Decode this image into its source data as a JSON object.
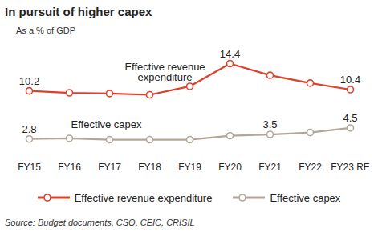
{
  "chart_data": {
    "type": "line",
    "title": "In pursuit of higher capex",
    "subtitle": "As a % of GDP",
    "source": "Source: Budget documents, CSO, CEIC, CRISIL",
    "categories": [
      "FY15",
      "FY16",
      "FY17",
      "FY18",
      "FY19",
      "FY20",
      "FY21",
      "FY22",
      "FY23 RE"
    ],
    "series": [
      {
        "name": "Effective revenue expenditure",
        "color": "#e0402a",
        "marker": "circle",
        "line_style": "solid",
        "values": [
          10.2,
          9.9,
          9.8,
          9.6,
          10.9,
          14.4,
          12.6,
          11.4,
          10.4
        ],
        "value_labels": [
          "10.2",
          null,
          null,
          null,
          null,
          "14.4",
          null,
          null,
          "10.4"
        ]
      },
      {
        "name": "Effective capex",
        "color": "#b3a699",
        "marker": "circle",
        "line_style": "solid",
        "values": [
          2.8,
          2.9,
          2.7,
          2.7,
          2.7,
          3.3,
          3.5,
          3.8,
          4.5
        ],
        "value_labels": [
          "2.8",
          null,
          null,
          null,
          null,
          null,
          "3.5",
          null,
          "4.5"
        ]
      }
    ],
    "annotations": [
      "Effective revenue expenditure",
      "Effective capex"
    ],
    "ylim": [
      0,
      16
    ],
    "yticks": [],
    "tick_labels": "x",
    "grid": false,
    "legend": "bottom"
  }
}
